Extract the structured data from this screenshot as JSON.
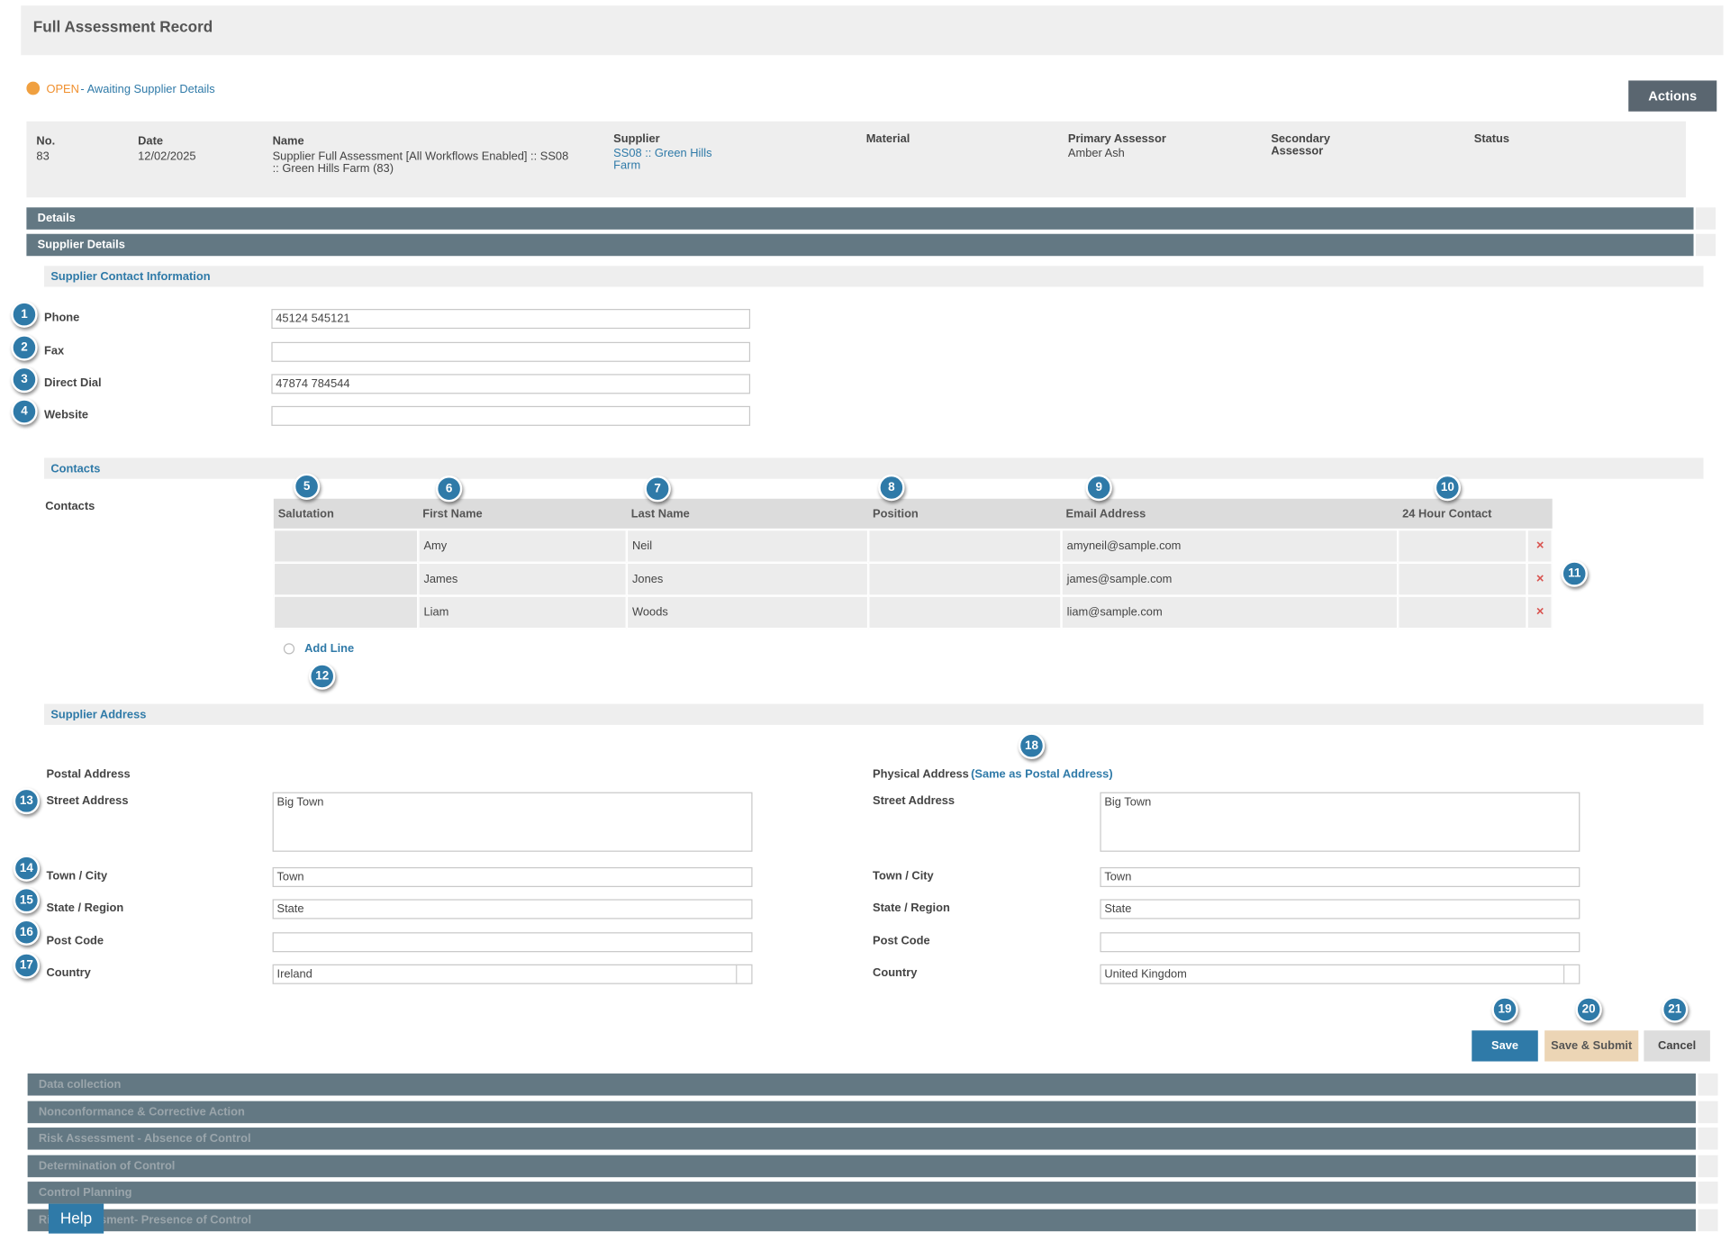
{
  "header": {
    "title": "Full Assessment Record"
  },
  "status": {
    "state": "OPEN",
    "text": "- Awaiting Supplier Details"
  },
  "actions": {
    "label": "Actions"
  },
  "summary": {
    "columns": [
      {
        "label": "No.",
        "value": "83"
      },
      {
        "label": "Date",
        "value": "12/02/2025"
      },
      {
        "label": "Name",
        "value": "Supplier Full Assessment [All Workflows Enabled] :: SS08 :: Green Hills Farm (83)"
      },
      {
        "label": "Supplier",
        "value": "SS08 :: Green Hills Farm",
        "link": true
      },
      {
        "label": "Material"
      },
      {
        "label": "Primary Assessor",
        "value": "Amber Ash"
      },
      {
        "label": "Secondary Assessor"
      },
      {
        "label": "Status"
      }
    ]
  },
  "panels": {
    "details": "Details",
    "supplier_details": "Supplier Details"
  },
  "contact_info": {
    "title": "Supplier Contact Information",
    "fields": [
      {
        "label": "Phone",
        "value": "45124 545121",
        "callout": 1
      },
      {
        "label": "Fax",
        "callout": 2
      },
      {
        "label": "Direct Dial",
        "value": "47874 784544",
        "callout": 3
      },
      {
        "label": "Website",
        "callout": 4
      }
    ]
  },
  "contacts": {
    "title": "Contacts",
    "label": "Contacts",
    "columns": [
      {
        "label": "Salutation",
        "callout": 5
      },
      {
        "label": "First Name",
        "callout": 6
      },
      {
        "label": "Last Name",
        "callout": 7
      },
      {
        "label": "Position",
        "callout": 8
      },
      {
        "label": "Email Address",
        "callout": 9
      },
      {
        "label": "24 Hour Contact",
        "callout": 10
      }
    ],
    "rows": [
      [
        null,
        "Amy",
        "Neil",
        null,
        "amyneil@sample.com",
        null
      ],
      [
        null,
        "James",
        "Jones",
        null,
        "james@sample.com",
        null
      ],
      [
        null,
        "Liam",
        "Woods",
        null,
        "liam@sample.com",
        null
      ]
    ],
    "delete_icon": "×",
    "delete_callout": 11,
    "add_line": "Add Line",
    "add_line_callout": 12
  },
  "address": {
    "title": "Supplier Address",
    "postal": {
      "title": "Postal Address",
      "fields": [
        {
          "label": "Street Address",
          "value": "Big Town",
          "callout": 13
        },
        {
          "label": "Town / City",
          "value": "Town",
          "callout": 14
        },
        {
          "label": "State / Region",
          "value": "State",
          "callout": 15
        },
        {
          "label": "Post Code",
          "callout": 16
        },
        {
          "label": "Country",
          "value": "Ireland",
          "callout": 17
        }
      ]
    },
    "physical": {
      "title": "Physical Address",
      "same_link": "(Same as Postal Address)",
      "callout": 18,
      "fields": [
        {
          "label": "Street Address",
          "value": "Big Town"
        },
        {
          "label": "Town / City",
          "value": "Town"
        },
        {
          "label": "State / Region",
          "value": "State"
        },
        {
          "label": "Post Code"
        },
        {
          "label": "Country",
          "value": "United Kingdom"
        }
      ]
    }
  },
  "buttons": [
    {
      "label": "Save",
      "callout": 19
    },
    {
      "label": "Save & Submit",
      "callout": 20
    },
    {
      "label": "Cancel",
      "callout": 21
    }
  ],
  "collapsed_panels": [
    "Data collection",
    "Nonconformance & Corrective Action",
    "Risk Assessment - Absence of Control",
    "Determination of Control",
    "Control Planning",
    "Risk Assessment- Presence of Control"
  ],
  "help": "Help"
}
